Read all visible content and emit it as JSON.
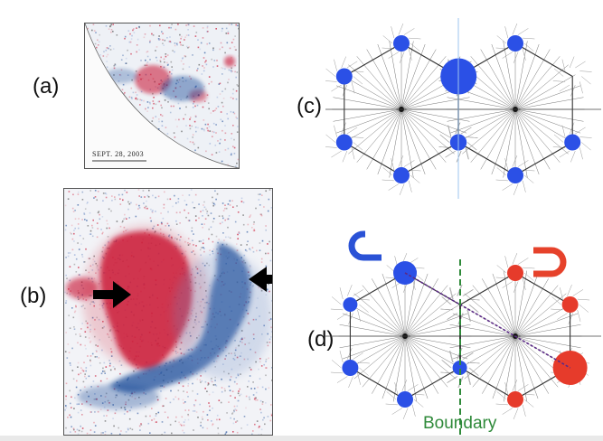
{
  "labels": {
    "a": "(a)",
    "b": "(b)",
    "c": "(c)",
    "d": "(d)"
  },
  "panel_a": {
    "date": "SEPT. 28, 2003"
  },
  "panel_d": {
    "boundary_label": "Boundary"
  },
  "colors": {
    "blue_node": "#2b50e6",
    "red_node": "#e63b2b",
    "magnetic_red": "#c8102e",
    "magnetic_blue": "#1f4e9a",
    "boundary_green": "#2f8a3a",
    "magnet_blue": "#2a52d6",
    "magnet_red": "#e6422b"
  }
}
